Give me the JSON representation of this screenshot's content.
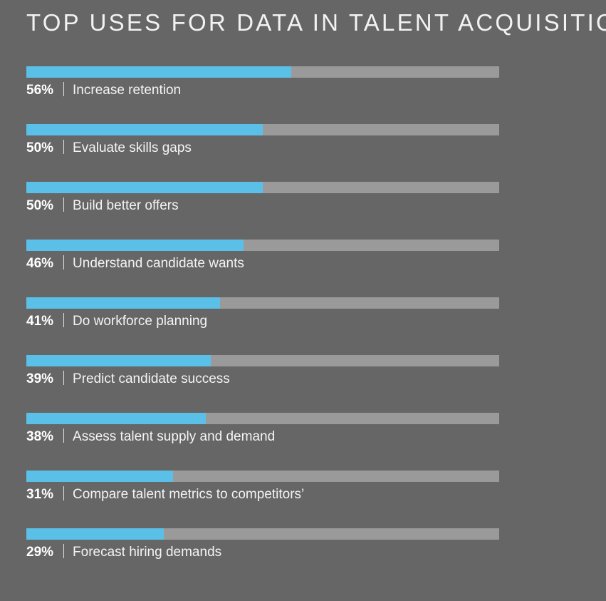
{
  "chart_data": {
    "type": "bar",
    "orientation": "horizontal",
    "title": "TOP USES FOR DATA IN TALENT ACQUISITION",
    "categories": [
      "Increase retention",
      "Evaluate skills gaps",
      "Build better offers",
      "Understand candidate wants",
      "Do workforce planning",
      "Predict candidate success",
      "Assess talent supply and demand",
      "Compare talent metrics to competitors’",
      "Forecast hiring demands"
    ],
    "values": [
      56,
      50,
      50,
      46,
      41,
      39,
      38,
      31,
      29
    ],
    "value_labels": [
      "56%",
      "50%",
      "50%",
      "46%",
      "41%",
      "39%",
      "38%",
      "31%",
      "29%"
    ],
    "xlim": [
      0,
      100
    ],
    "unit": "%",
    "grid": false,
    "legend": "none",
    "colors": {
      "bar_fill": "#5bc0e8",
      "bar_track": "#9a9a9a",
      "background": "#666666"
    }
  }
}
